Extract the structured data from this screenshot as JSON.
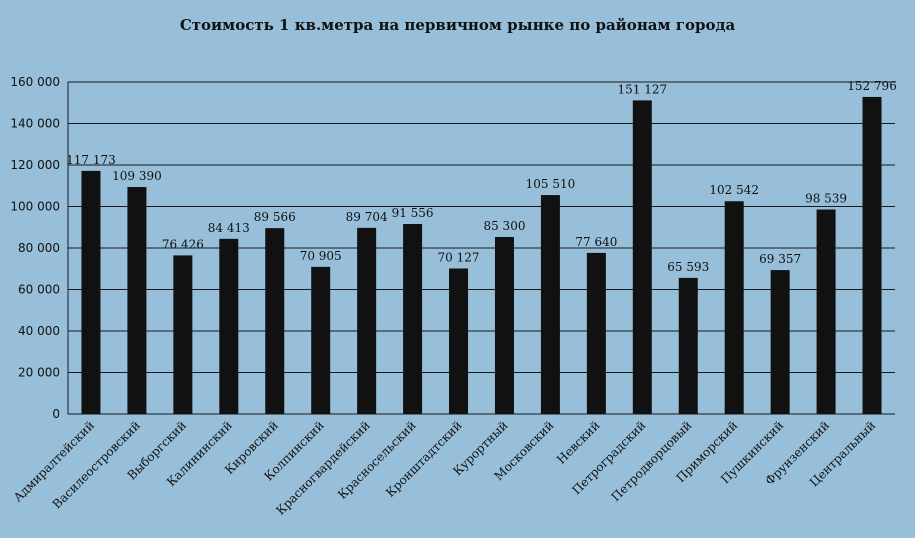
{
  "chart_data": {
    "type": "bar",
    "title": "Стоимость 1 кв.метра на первичном  рынке по районам  города",
    "categories": [
      "Адмиралтейский",
      "Василеостровский",
      "Выборгский",
      "Калининский",
      "Кировский",
      "Колпинский",
      "Красногвардейский",
      "Красносельский",
      "Кронштадтский",
      "Курортный",
      "Московский",
      "Невский",
      "Петроградский",
      "Петродворцовый",
      "Приморский",
      "Пушкинский",
      "Фрунзенский",
      "Центральный"
    ],
    "values": [
      117173,
      109390,
      76426,
      84413,
      89566,
      70905,
      89704,
      91556,
      70127,
      85300,
      105510,
      77640,
      151127,
      65593,
      102542,
      69357,
      98539,
      152796
    ],
    "value_labels": [
      "117 173",
      "109 390",
      "76 426",
      "84 413",
      "89 566",
      "70 905",
      "89 704",
      "91 556",
      "70 127",
      "85 300",
      "105 510",
      "77 640",
      "151 127",
      "65 593",
      "102 542",
      "69 357",
      "98 539",
      "152 796"
    ],
    "yticks": [
      0,
      20000,
      40000,
      60000,
      80000,
      100000,
      120000,
      140000,
      160000
    ],
    "ytick_labels": [
      "0",
      "20 000",
      "40 000",
      "60 000",
      "80 000",
      "100 000",
      "120 000",
      "140 000",
      "160 000"
    ],
    "ylim": [
      0,
      160000
    ],
    "xlabel": "",
    "ylabel": "",
    "grid": "horizontal",
    "colors": {
      "bar": "#111111",
      "grid": "#1a1a1a",
      "background": "#98bfd9"
    }
  }
}
